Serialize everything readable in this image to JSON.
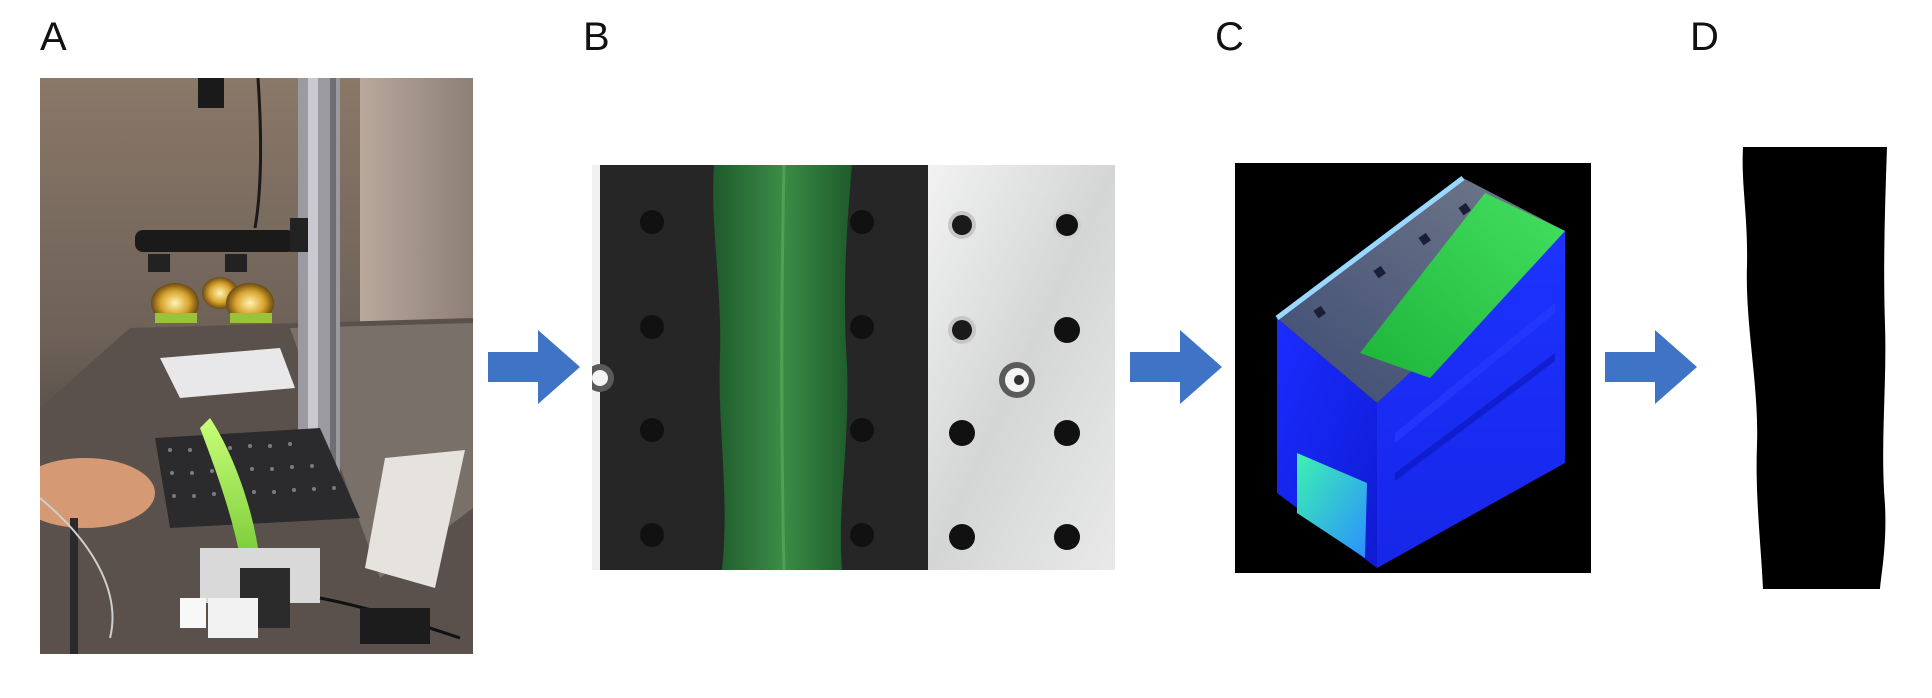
{
  "panels": [
    {
      "label": "A"
    },
    {
      "label": "B"
    },
    {
      "label": "C"
    },
    {
      "label": "D"
    }
  ],
  "colors": {
    "arrow": "#3f73c6",
    "leaf_green": "#2f7a3a",
    "cube_blue": "#1f2cff",
    "mask": "#000000",
    "background": "#ffffff"
  },
  "icons": [
    "right-arrow-icon",
    "right-arrow-icon",
    "right-arrow-icon"
  ]
}
